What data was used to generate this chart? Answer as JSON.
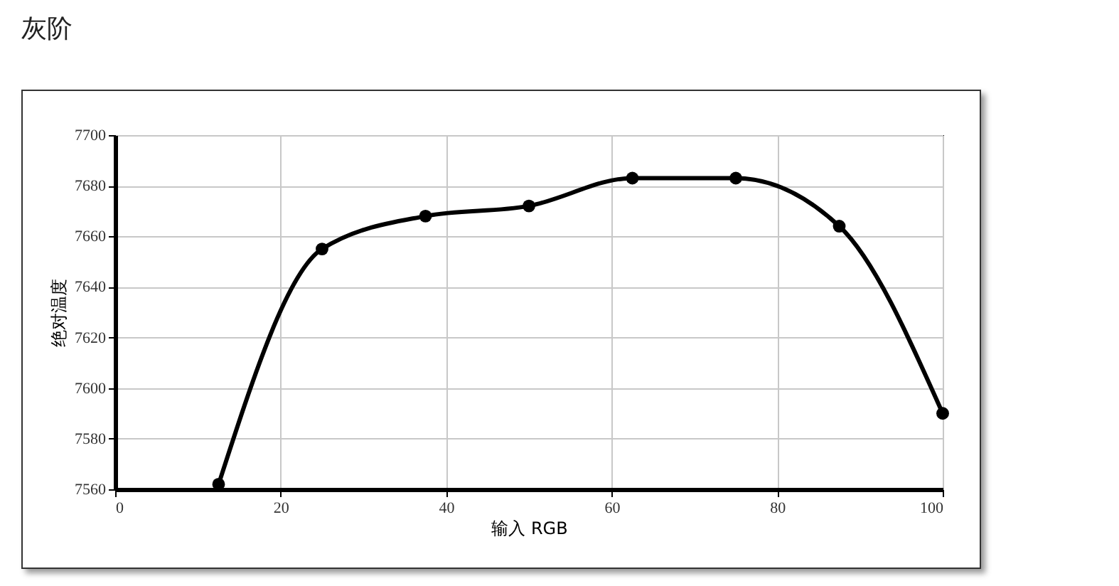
{
  "chart_data": {
    "type": "line",
    "title": "灰阶",
    "xlabel": "输入 RGB",
    "ylabel": "绝对温度",
    "x": [
      12.5,
      25,
      37.5,
      50,
      62.5,
      75,
      87.5,
      100
    ],
    "series": [
      {
        "color": "#000000",
        "values": [
          7562,
          7655,
          7668,
          7672,
          7683,
          7683,
          7664,
          7590
        ]
      }
    ],
    "xlim": [
      0,
      100
    ],
    "xticks": [
      0,
      20,
      40,
      60,
      80,
      100
    ],
    "ylim": [
      7560,
      7700
    ],
    "yticks": [
      7560,
      7580,
      7600,
      7620,
      7640,
      7660,
      7680,
      7700
    ],
    "grid": true,
    "marker": "circle",
    "line_style": "solid"
  }
}
